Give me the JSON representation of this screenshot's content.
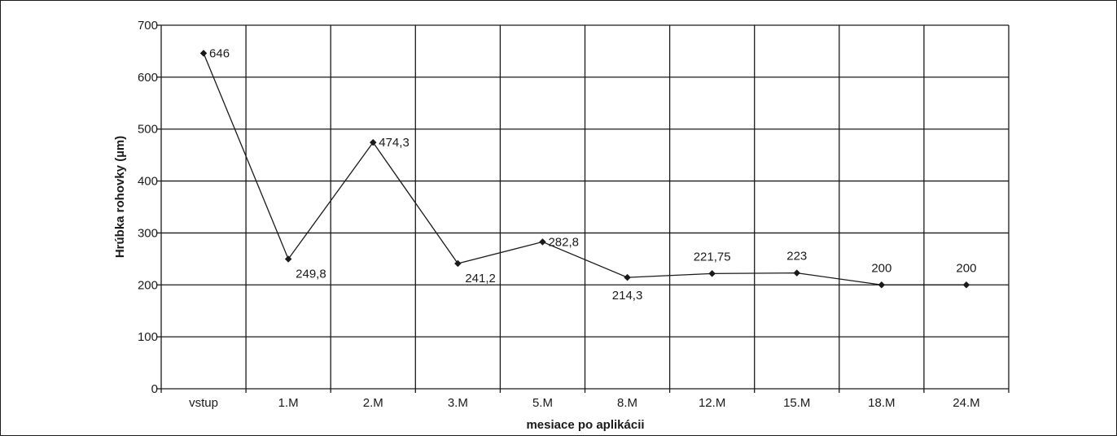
{
  "chart_data": {
    "type": "line",
    "title": "",
    "xlabel": "mesiace po aplikácii",
    "ylabel": "Hrúbka rohovky (µm)",
    "ylim": [
      0,
      700
    ],
    "yticks": [
      0,
      100,
      200,
      300,
      400,
      500,
      600,
      700
    ],
    "categories": [
      "vstup",
      "1.M",
      "2.M",
      "3.M",
      "5.M",
      "8.M",
      "12.M",
      "15.M",
      "18.M",
      "24.M"
    ],
    "values": [
      646,
      249.8,
      474.3,
      241.2,
      282.8,
      214.3,
      221.75,
      223,
      200,
      200
    ],
    "data_labels": [
      "646",
      "249,8",
      "474,3",
      "241,2",
      "282,8",
      "214,3",
      "221,75",
      "223",
      "200",
      "200"
    ],
    "grid": true,
    "legend": "none",
    "colors": {
      "line": "#1a1a1a",
      "grid": "#1a1a1a",
      "frame": "#1a1a1a",
      "background": "#ffffff"
    }
  }
}
